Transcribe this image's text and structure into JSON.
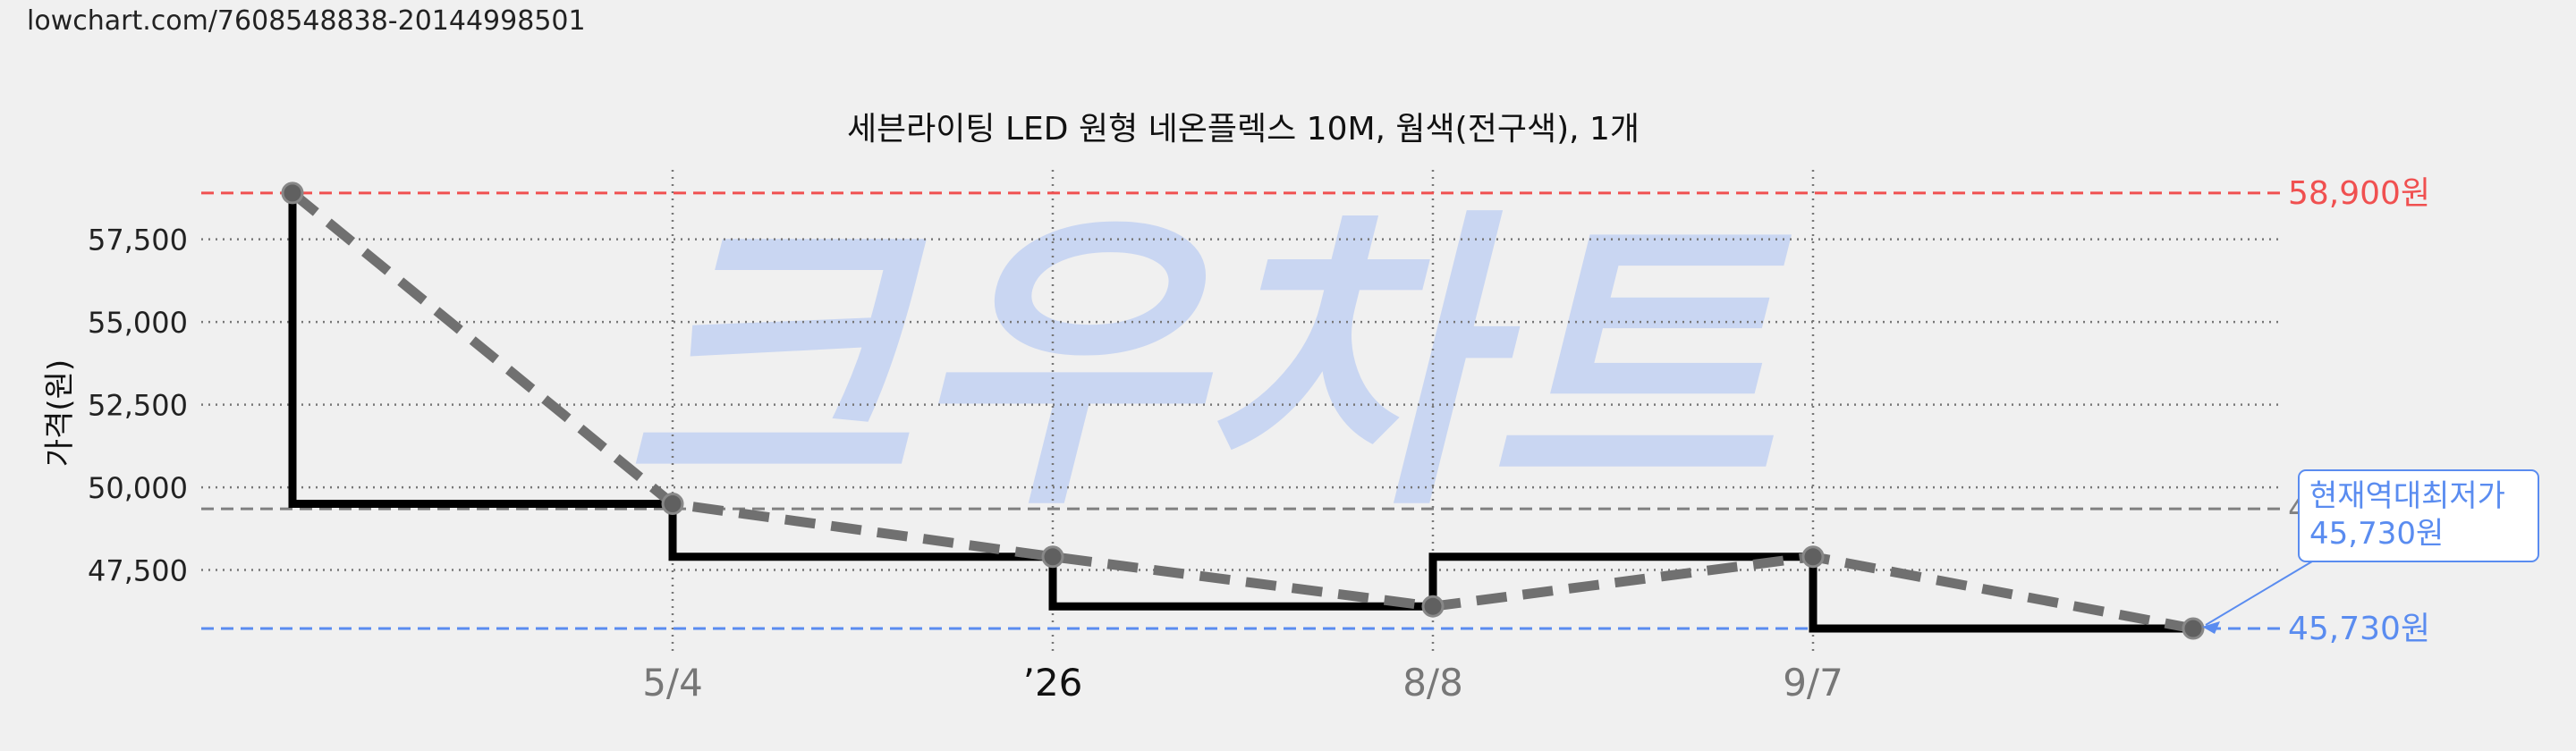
{
  "page": {
    "url_text": "lowchart.com/7608548838-20144998501"
  },
  "watermark": {
    "text": "크우차트",
    "color": "#c9d6f2"
  },
  "chart_data": {
    "type": "line",
    "title": "세븐라이팅 LED 원형 네온플렉스 10M, 웜색(전구색), 1개",
    "ylabel": "가격(원)",
    "xlabel": "",
    "ylim": [
      45000,
      59600
    ],
    "yticks": [
      47500,
      50000,
      52500,
      55000,
      57500
    ],
    "ytick_labels": [
      "47,500",
      "50,000",
      "52,500",
      "55,000",
      "57,500"
    ],
    "xticks": [
      {
        "pos": 1,
        "label": "5/4"
      },
      {
        "pos": 2,
        "label": "’26"
      },
      {
        "pos": 3,
        "label": "8/8"
      },
      {
        "pos": 4,
        "label": "9/7"
      }
    ],
    "xlim": [
      -0.25,
      5.2
    ],
    "grid": true,
    "series": [
      {
        "name": "",
        "style": "step",
        "color": "#000000",
        "points": [
          {
            "x": 0,
            "y": 58900
          },
          {
            "x": 0,
            "y": 49500
          },
          {
            "x": 1,
            "y": 49500
          },
          {
            "x": 1,
            "y": 47900
          },
          {
            "x": 2,
            "y": 47900
          },
          {
            "x": 2,
            "y": 46400
          },
          {
            "x": 3,
            "y": 46400
          },
          {
            "x": 3,
            "y": 47900
          },
          {
            "x": 4,
            "y": 47900
          },
          {
            "x": 4,
            "y": 45730
          },
          {
            "x": 5,
            "y": 45730
          }
        ]
      },
      {
        "name": "",
        "style": "dashed",
        "color": "#707070",
        "points": [
          {
            "x": 0,
            "y": 58900
          },
          {
            "x": 1,
            "y": 49500
          },
          {
            "x": 2,
            "y": 47900
          },
          {
            "x": 3,
            "y": 46400
          },
          {
            "x": 4,
            "y": 47900
          },
          {
            "x": 5,
            "y": 45730
          }
        ]
      }
    ],
    "reference_lines": [
      {
        "y": 58900,
        "label": "58,900원",
        "color": "#f05050"
      },
      {
        "y": 45730,
        "label": "45,730원",
        "color": "#5a8cf0"
      },
      {
        "y": 49350,
        "label": "4",
        "color": "#808080"
      }
    ],
    "annotation": {
      "text_line1": "현재역대최저가",
      "text_line2": "45,730원",
      "target_x": 5,
      "target_y": 45730,
      "color": "#5a8cf0"
    }
  }
}
